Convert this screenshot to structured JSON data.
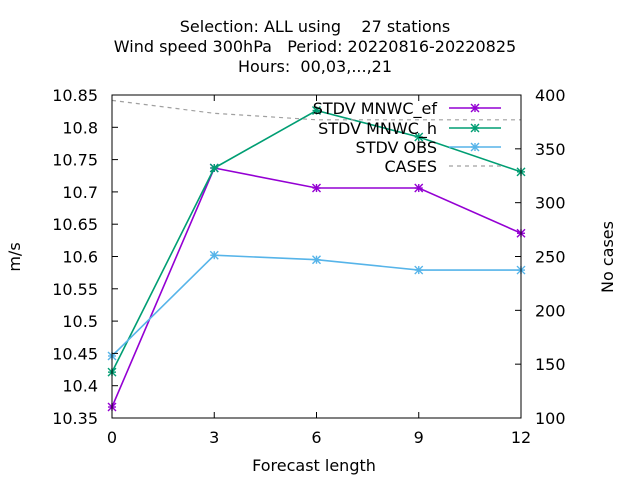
{
  "chart_data": {
    "type": "line",
    "title_lines": [
      "Selection: ALL using    27 stations",
      "Wind speed 300hPa   Period: 20220816-20220825",
      "Hours:  00,03,...,21"
    ],
    "xlabel": "Forecast length",
    "ylabel": "m/s",
    "y2label": "No cases",
    "x_ticks": [
      0,
      3,
      6,
      9,
      12
    ],
    "y_ticks": [
      "10.35",
      "10.4",
      "10.45",
      "10.5",
      "10.55",
      "10.6",
      "10.65",
      "10.7",
      "10.75",
      "10.8",
      "10.85"
    ],
    "y2_ticks": [
      "100",
      "150",
      "200",
      "250",
      "300",
      "350",
      "400"
    ],
    "xlim": [
      0,
      12
    ],
    "ylim": [
      10.35,
      10.85
    ],
    "y2lim": [
      100,
      400
    ],
    "legend_position": "top-right",
    "series": [
      {
        "name": "STDV MNWC_ef",
        "axis": "y",
        "color": "#9400d3",
        "dash": false,
        "marker": "x",
        "x": [
          0,
          3,
          6,
          9,
          12
        ],
        "values": [
          10.367,
          10.737,
          10.706,
          10.706,
          10.636
        ]
      },
      {
        "name": "STDV MNWC_h",
        "axis": "y",
        "color": "#009e73",
        "dash": false,
        "marker": "x",
        "x": [
          0,
          3,
          6,
          9,
          12
        ],
        "values": [
          10.421,
          10.737,
          10.826,
          10.785,
          10.731
        ]
      },
      {
        "name": "STDV OBS",
        "axis": "y",
        "color": "#56b4e9",
        "dash": false,
        "marker": "x",
        "x": [
          0,
          3,
          6,
          9,
          12
        ],
        "values": [
          10.446,
          10.602,
          10.595,
          10.579,
          10.579
        ]
      },
      {
        "name": "CASES",
        "axis": "y2",
        "color": "#a0a0a0",
        "dash": true,
        "marker": "none",
        "x": [
          0,
          3,
          6,
          9,
          12
        ],
        "values": [
          395,
          383,
          377,
          377,
          377
        ]
      }
    ]
  }
}
